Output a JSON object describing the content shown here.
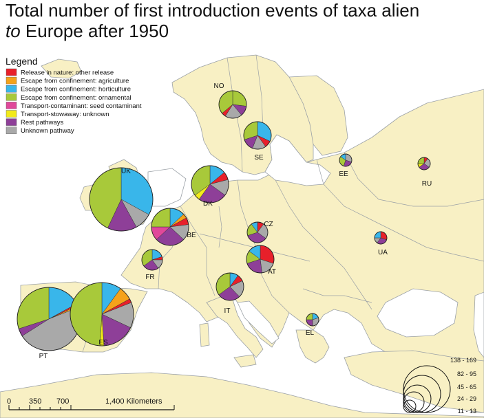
{
  "title": {
    "line1": "Total number of first introduction events of taxa alien",
    "line2_italic": "to",
    "line2_rest": " Europe after 1950"
  },
  "legend": {
    "title": "Legend",
    "items": [
      {
        "label": "Release in nature: other release",
        "color": "#e8202a"
      },
      {
        "label": "Escape from confinement: agriculture",
        "color": "#f5a21a"
      },
      {
        "label": "Escape from confinement: horticulture",
        "color": "#39b6ea"
      },
      {
        "label": "Escape from confinement: ornamental",
        "color": "#a8c93a"
      },
      {
        "label": "Transport-contaminant: seed contaminant",
        "color": "#e0489a"
      },
      {
        "label": "Transport-stowaway: unknown",
        "color": "#f2ea1a"
      },
      {
        "label": "Rest pathways",
        "color": "#8e3f98"
      },
      {
        "label": "Unknown pathway",
        "color": "#a9a9a9"
      }
    ]
  },
  "colors": {
    "land": "#f8f0c4",
    "sea": "#ffffff",
    "border": "#9aa0a6"
  },
  "countries": [
    {
      "code": "NO",
      "size_class": "45 - 65",
      "slices": [
        {
          "c": 3,
          "v": 0.27
        },
        {
          "c": 6,
          "v": 0.12
        },
        {
          "c": 7,
          "v": 0.2
        },
        {
          "c": 0,
          "v": 0.05
        },
        {
          "c": 3,
          "v": 0.36
        }
      ]
    },
    {
      "code": "SE",
      "size_class": "45 - 65",
      "slices": [
        {
          "c": 2,
          "v": 0.32
        },
        {
          "c": 0,
          "v": 0.08
        },
        {
          "c": 7,
          "v": 0.16
        },
        {
          "c": 6,
          "v": 0.14
        },
        {
          "c": 3,
          "v": 0.3
        }
      ]
    },
    {
      "code": "EE",
      "size_class": "11 - 13",
      "slices": [
        {
          "c": 7,
          "v": 0.3
        },
        {
          "c": 6,
          "v": 0.25
        },
        {
          "c": 3,
          "v": 0.3
        },
        {
          "c": 2,
          "v": 0.15
        }
      ]
    },
    {
      "code": "RU",
      "size_class": "11 - 13",
      "slices": [
        {
          "c": 0,
          "v": 0.1
        },
        {
          "c": 7,
          "v": 0.25
        },
        {
          "c": 6,
          "v": 0.3
        },
        {
          "c": 5,
          "v": 0.1
        },
        {
          "c": 3,
          "v": 0.25
        }
      ]
    },
    {
      "code": "UK",
      "size_class": "138 - 169",
      "slices": [
        {
          "c": 2,
          "v": 0.33
        },
        {
          "c": 7,
          "v": 0.09
        },
        {
          "c": 6,
          "v": 0.15
        },
        {
          "c": 3,
          "v": 0.43
        }
      ]
    },
    {
      "code": "DK",
      "size_class": "82 - 95",
      "slices": [
        {
          "c": 2,
          "v": 0.14
        },
        {
          "c": 0,
          "v": 0.07
        },
        {
          "c": 7,
          "v": 0.14
        },
        {
          "c": 6,
          "v": 0.25
        },
        {
          "c": 5,
          "v": 0.05
        },
        {
          "c": 3,
          "v": 0.35
        }
      ]
    },
    {
      "code": "BE",
      "size_class": "82 - 95",
      "slices": [
        {
          "c": 2,
          "v": 0.13
        },
        {
          "c": 1,
          "v": 0.04
        },
        {
          "c": 0,
          "v": 0.06
        },
        {
          "c": 7,
          "v": 0.14
        },
        {
          "c": 6,
          "v": 0.26
        },
        {
          "c": 4,
          "v": 0.12
        },
        {
          "c": 3,
          "v": 0.25
        }
      ]
    },
    {
      "code": "CZ",
      "size_class": "24 - 29",
      "slices": [
        {
          "c": 0,
          "v": 0.1
        },
        {
          "c": 7,
          "v": 0.25
        },
        {
          "c": 6,
          "v": 0.35
        },
        {
          "c": 3,
          "v": 0.2
        },
        {
          "c": 2,
          "v": 0.1
        }
      ]
    },
    {
      "code": "UA",
      "size_class": "11 - 13",
      "slices": [
        {
          "c": 0,
          "v": 0.3
        },
        {
          "c": 6,
          "v": 0.3
        },
        {
          "c": 7,
          "v": 0.15
        },
        {
          "c": 2,
          "v": 0.25
        }
      ]
    },
    {
      "code": "AT",
      "size_class": "45 - 65",
      "slices": [
        {
          "c": 0,
          "v": 0.3
        },
        {
          "c": 7,
          "v": 0.18
        },
        {
          "c": 6,
          "v": 0.22
        },
        {
          "c": 3,
          "v": 0.15
        },
        {
          "c": 2,
          "v": 0.15
        }
      ]
    },
    {
      "code": "FR",
      "size_class": "24 - 29",
      "slices": [
        {
          "c": 2,
          "v": 0.2
        },
        {
          "c": 0,
          "v": 0.05
        },
        {
          "c": 7,
          "v": 0.15
        },
        {
          "c": 6,
          "v": 0.25
        },
        {
          "c": 3,
          "v": 0.35
        }
      ]
    },
    {
      "code": "IT",
      "size_class": "45 - 65",
      "slices": [
        {
          "c": 2,
          "v": 0.1
        },
        {
          "c": 0,
          "v": 0.08
        },
        {
          "c": 7,
          "v": 0.2
        },
        {
          "c": 6,
          "v": 0.27
        },
        {
          "c": 3,
          "v": 0.35
        }
      ]
    },
    {
      "code": "EL",
      "size_class": "11 - 13",
      "slices": [
        {
          "c": 2,
          "v": 0.2
        },
        {
          "c": 7,
          "v": 0.3
        },
        {
          "c": 6,
          "v": 0.25
        },
        {
          "c": 3,
          "v": 0.25
        }
      ]
    },
    {
      "code": "PT",
      "size_class": "138 - 169",
      "slices": [
        {
          "c": 2,
          "v": 0.17
        },
        {
          "c": 0,
          "v": 0.01
        },
        {
          "c": 1,
          "v": 0.01
        },
        {
          "c": 7,
          "v": 0.47
        },
        {
          "c": 6,
          "v": 0.04
        },
        {
          "c": 3,
          "v": 0.3
        }
      ]
    },
    {
      "code": "ES",
      "size_class": "138 - 169",
      "slices": [
        {
          "c": 2,
          "v": 0.1
        },
        {
          "c": 1,
          "v": 0.07
        },
        {
          "c": 0,
          "v": 0.02
        },
        {
          "c": 7,
          "v": 0.13
        },
        {
          "c": 6,
          "v": 0.17
        },
        {
          "c": 5,
          "v": 0.02
        },
        {
          "c": 3,
          "v": 0.49
        }
      ]
    }
  ],
  "size_legend": [
    "138 - 169",
    "82 - 95",
    "45 - 65",
    "24 - 29",
    "11 - 13"
  ],
  "scale_bar": {
    "labels": [
      "0",
      "350",
      "700",
      "1,400 Kilometers"
    ]
  }
}
